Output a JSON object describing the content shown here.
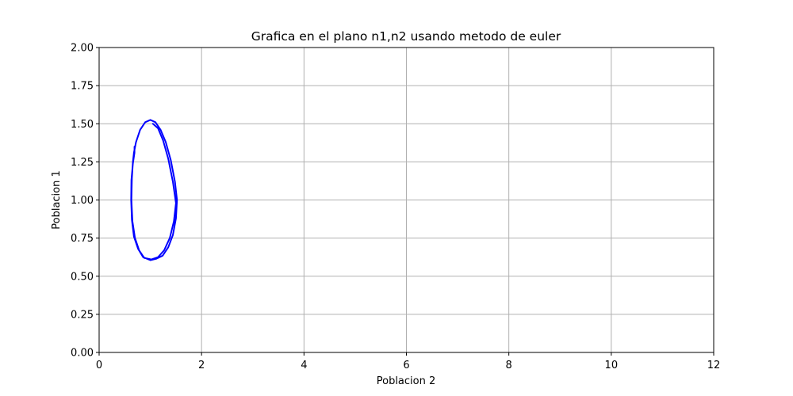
{
  "chart_data": {
    "type": "line",
    "title": "Grafica en el plano n1,n2 usando metodo de euler",
    "xlabel": "Poblacion 2",
    "ylabel": "Poblacion 1",
    "xlim": [
      0,
      12
    ],
    "ylim": [
      0,
      2
    ],
    "xticks": [
      "0",
      "2",
      "4",
      "6",
      "8",
      "10",
      "12"
    ],
    "yticks": [
      "0.00",
      "0.25",
      "0.50",
      "0.75",
      "1.00",
      "1.25",
      "1.50",
      "1.75",
      "2.00"
    ],
    "grid": true,
    "series": [
      {
        "color": "#0000ff",
        "points": [
          [
            1.05,
            1.5
          ],
          [
            1.15,
            1.47
          ],
          [
            1.25,
            1.39
          ],
          [
            1.35,
            1.27
          ],
          [
            1.44,
            1.12
          ],
          [
            1.5,
            0.98
          ],
          [
            1.46,
            0.86
          ],
          [
            1.38,
            0.75
          ],
          [
            1.27,
            0.67
          ],
          [
            1.15,
            0.625
          ],
          [
            1.02,
            0.61
          ],
          [
            0.88,
            0.62
          ],
          [
            0.78,
            0.67
          ],
          [
            0.7,
            0.75
          ],
          [
            0.65,
            0.86
          ],
          [
            0.63,
            1.0
          ],
          [
            0.64,
            1.14
          ],
          [
            0.66,
            1.25
          ],
          [
            0.68,
            1.31
          ],
          [
            0.72,
            1.38
          ],
          [
            0.8,
            1.46
          ],
          [
            0.9,
            1.51
          ],
          [
            1.0,
            1.525
          ],
          [
            1.1,
            1.51
          ],
          [
            1.2,
            1.46
          ],
          [
            1.3,
            1.38
          ],
          [
            1.4,
            1.26
          ],
          [
            1.48,
            1.12
          ],
          [
            1.52,
            1.0
          ],
          [
            1.5,
            0.88
          ],
          [
            1.44,
            0.77
          ],
          [
            1.35,
            0.69
          ],
          [
            1.24,
            0.635
          ],
          [
            1.12,
            0.615
          ],
          [
            1.0,
            0.605
          ],
          [
            0.86,
            0.625
          ],
          [
            0.76,
            0.68
          ],
          [
            0.68,
            0.76
          ],
          [
            0.64,
            0.87
          ],
          [
            0.625,
            1.0
          ],
          [
            0.63,
            1.13
          ],
          [
            0.66,
            1.24
          ],
          [
            0.69,
            1.31
          ],
          [
            0.69,
            1.35
          ]
        ]
      }
    ]
  },
  "colors": {
    "line": "#0000ff",
    "grid": "#b0b0b0",
    "axes": "#000000"
  }
}
